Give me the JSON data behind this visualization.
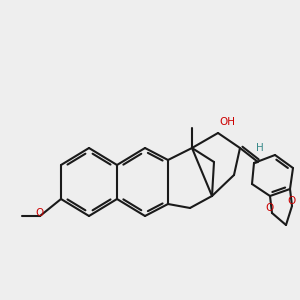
{
  "bg_color": "#eeeeee",
  "bond_color": "#1a1a1a",
  "bond_lw": 1.5,
  "red_color": "#cc0000",
  "teal_color": "#3a8a8a",
  "oh_color": "#cc0000",
  "h_color": "#3a8a8a",
  "o_color": "#cc0000",
  "methoxy_label": "O",
  "oh_label": "OH",
  "h_label": "H"
}
